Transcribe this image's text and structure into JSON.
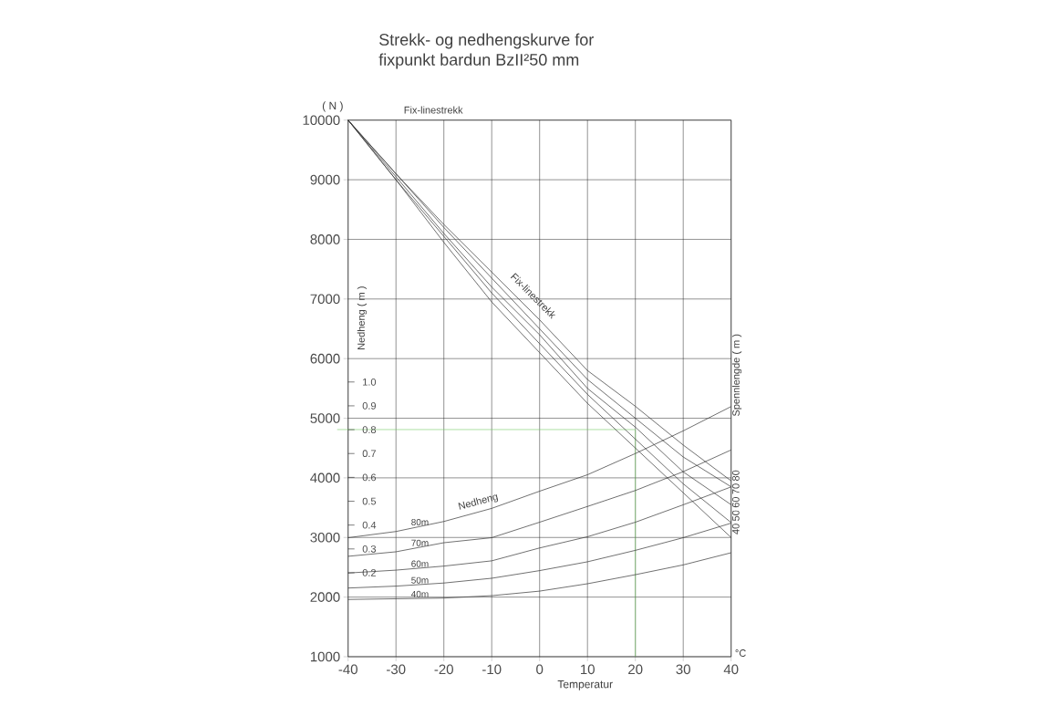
{
  "chart_data": {
    "type": "line",
    "title": "Strekk- og nedhengskurve for",
    "subtitle": "fixpunkt bardun BzII²50 mm",
    "xlabel": "Temperatur",
    "ylabel": "( N )",
    "y2label": "Nedheng ( m )",
    "x": [
      -40,
      -30,
      -20,
      -10,
      0,
      10,
      20,
      30,
      40
    ],
    "xlim": [
      -40,
      40
    ],
    "xticks": [
      -40,
      -30,
      -20,
      -10,
      0,
      10,
      20,
      30,
      40
    ],
    "ylim": [
      1000,
      10000
    ],
    "yticks": [
      1000,
      2000,
      3000,
      4000,
      5000,
      6000,
      7000,
      8000,
      9000,
      10000
    ],
    "y2lim": [
      -0.152,
      2.098
    ],
    "y2ticks": [
      0.2,
      0.3,
      0.4,
      0.5,
      0.6,
      0.7,
      0.8,
      0.9,
      {
        "value": 1.0,
        "label": "1.0"
      }
    ],
    "grid": true,
    "marker": "none",
    "line_style": "solid",
    "series": [
      {
        "name": "40",
        "color": "#333333",
        "values": [
          10000,
          9000,
          7950,
          6950,
          6100,
          5250,
          4500,
          3750,
          3000
        ]
      },
      {
        "name": "50",
        "color": "#333333",
        "values": [
          10000,
          9000,
          8050,
          7100,
          6250,
          5400,
          4650,
          3900,
          3250
        ]
      },
      {
        "name": "60",
        "color": "#333333",
        "values": [
          10000,
          9050,
          8100,
          7200,
          6400,
          5500,
          4850,
          4100,
          3550
        ]
      },
      {
        "name": "70",
        "color": "#333333",
        "values": [
          10000,
          9100,
          8200,
          7350,
          6500,
          5650,
          5000,
          4350,
          3850
        ]
      },
      {
        "name": "80",
        "color": "#333333",
        "values": [
          10000,
          9100,
          8250,
          7450,
          6650,
          5800,
          5200,
          4550,
          3950
        ]
      },
      {
        "name": "40m",
        "color": "#333333",
        "axis": "y2",
        "values": [
          0.088,
          0.091,
          0.094,
          0.104,
          0.123,
          0.154,
          0.192,
          0.233,
          0.284
        ]
      },
      {
        "name": "50m",
        "color": "#333333",
        "axis": "y2",
        "values": [
          0.136,
          0.144,
          0.157,
          0.177,
          0.209,
          0.246,
          0.294,
          0.347,
          0.408
        ]
      },
      {
        "name": "60m",
        "color": "#333333",
        "axis": "y2",
        "values": [
          0.199,
          0.211,
          0.228,
          0.25,
          0.304,
          0.351,
          0.412,
          0.485,
          0.56
        ]
      },
      {
        "name": "70m",
        "color": "#333333",
        "axis": "y2",
        "values": [
          0.269,
          0.288,
          0.326,
          0.347,
          0.412,
          0.478,
          0.545,
          0.624,
          0.715
        ]
      },
      {
        "name": "80m",
        "color": "#333333",
        "axis": "y2",
        "values": [
          0.347,
          0.373,
          0.415,
          0.47,
          0.542,
          0.611,
          0.7,
          0.795,
          0.897
        ]
      }
    ],
    "ref_lines": [
      {
        "axis": "x",
        "value": 20,
        "color": "#77cc66"
      },
      {
        "axis": "y",
        "value": 4810,
        "color": "#77cc66"
      }
    ],
    "annotations": [
      "Fix-linestrekk",
      "Fix-linestrekk",
      "Nedheng",
      "Spennlengde ( m )",
      "°C"
    ]
  }
}
